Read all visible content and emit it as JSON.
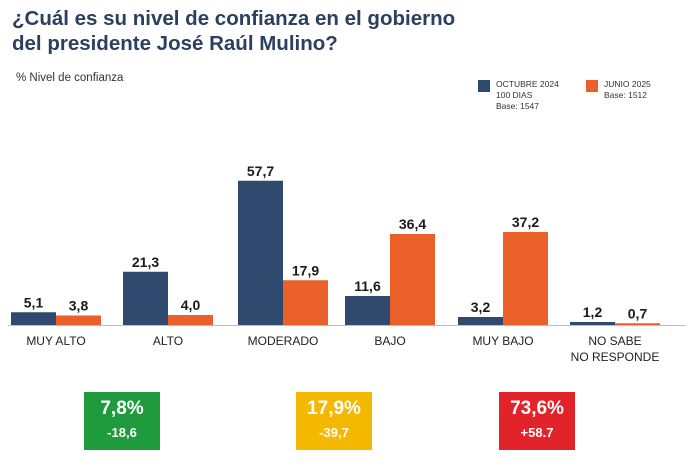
{
  "title": "¿Cuál es su nivel de confianza en el gobierno del presidente José Raúl Mulino?",
  "subtitle": "% Nivel de confianza",
  "legend": [
    {
      "lines": [
        "OCTUBRE 2024",
        "100 DIAS",
        "Base: 1547"
      ],
      "color": "#2f4a6e"
    },
    {
      "lines": [
        "JUNIO 2025",
        "Base: 1512"
      ],
      "color": "#ea5f2a"
    }
  ],
  "chart_data": {
    "type": "bar",
    "title": "¿Cuál es su nivel de confianza en el gobierno del presidente José Raúl Mulino?",
    "ylabel": "% Nivel de confianza",
    "xlabel": "",
    "ylim": [
      0,
      60
    ],
    "grid": false,
    "legend_position": "top-right",
    "categories": [
      [
        "MUY ALTO"
      ],
      [
        "ALTO"
      ],
      [
        "MODERADO"
      ],
      [
        "BAJO"
      ],
      [
        "MUY BAJO"
      ],
      [
        "NO SABE",
        "NO RESPONDE"
      ]
    ],
    "series": [
      {
        "name": "OCTUBRE 2024 100 DIAS",
        "color": "#2f4a6e",
        "values": [
          5.1,
          21.3,
          57.7,
          11.6,
          3.2,
          1.2
        ],
        "labels": [
          "5,1",
          "21,3",
          "57,7",
          "11,6",
          "3,2",
          "1,2"
        ]
      },
      {
        "name": "JUNIO 2025",
        "color": "#ea5f2a",
        "values": [
          3.8,
          4.0,
          17.9,
          36.4,
          37.2,
          0.7
        ],
        "labels": [
          "3,8",
          "4,0",
          "17,9",
          "36,4",
          "37,2",
          "0,7"
        ]
      }
    ]
  },
  "summary": [
    {
      "pct": "7,8%",
      "change": "-18,6",
      "color": "#1f9a3c"
    },
    {
      "pct": "17,9%",
      "change": "-39,7",
      "color": "#f5b800"
    },
    {
      "pct": "73,6%",
      "change": "+58.7",
      "color": "#e2242a"
    }
  ]
}
